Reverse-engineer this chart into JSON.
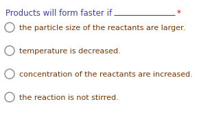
{
  "title_text": "Products will form faster if",
  "title_asterisk": "*",
  "title_color": "#3d3db5",
  "asterisk_color": "#cc0000",
  "options": [
    "the particle size of the reactants are larger.",
    "temperature is decreased.",
    "concentration of the reactants are increased.",
    "the reaction is not stirred."
  ],
  "option_color": "#7b3300",
  "circle_edgecolor": "#888888",
  "background_color": "#ffffff",
  "title_fontsize": 8.5,
  "option_fontsize": 8.0,
  "fig_width": 2.9,
  "fig_height": 1.71,
  "dpi": 100
}
